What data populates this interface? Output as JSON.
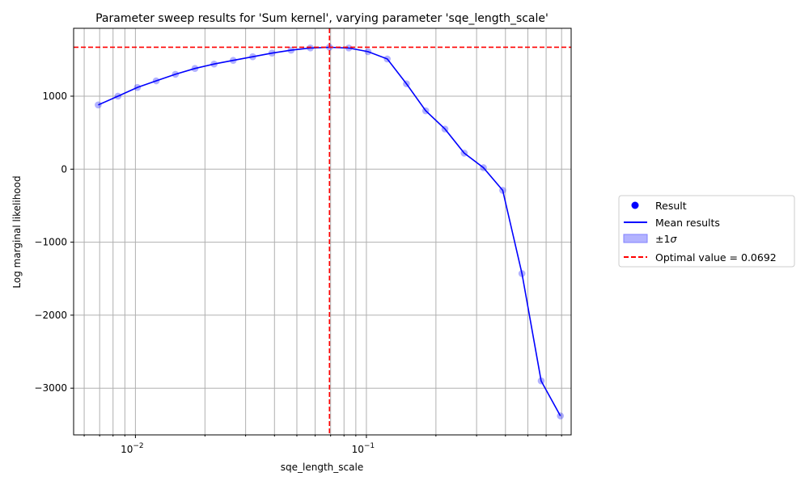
{
  "chart_data": {
    "type": "line",
    "title": "Parameter sweep results for 'Sum kernel', varying parameter 'sqe_length_scale'",
    "xlabel": "sqe_length_scale",
    "ylabel": "Log marginal likelihood",
    "xscale": "log",
    "xlim": [
      0.0054,
      0.77
    ],
    "ylim": [
      -3640,
      1930
    ],
    "y_ticks": [
      1000,
      0,
      -1000,
      -2000,
      -3000
    ],
    "y_tick_labels": [
      "1000",
      "0",
      "−1000",
      "−2000",
      "−3000"
    ],
    "x_major_ticks": [
      0.01,
      0.1
    ],
    "x_major_tick_labels": [
      "10",
      "10"
    ],
    "x_major_tick_exponents": [
      "−2",
      "−1"
    ],
    "x_minor_ticks": [
      0.006,
      0.007,
      0.008,
      0.009,
      0.02,
      0.03,
      0.04,
      0.05,
      0.06,
      0.07,
      0.08,
      0.09,
      0.2,
      0.3,
      0.4,
      0.5,
      0.6,
      0.7
    ],
    "grid": true,
    "legend_position": "right",
    "series": [
      {
        "name": "Result",
        "kind": "scatter",
        "color": "#0000ff",
        "x": [
          0.0069,
          0.0084,
          0.0102,
          0.0123,
          0.0149,
          0.0181,
          0.0219,
          0.0265,
          0.0322,
          0.039,
          0.0472,
          0.0572,
          0.0692,
          0.0839,
          0.1016,
          0.1231,
          0.1491,
          0.1806,
          0.2188,
          0.2651,
          0.3212,
          0.3891,
          0.4714,
          0.5711,
          0.6919
        ],
        "y": [
          880,
          1000,
          1120,
          1210,
          1300,
          1380,
          1440,
          1490,
          1540,
          1590,
          1630,
          1660,
          1670,
          1660,
          1610,
          1510,
          1170,
          800,
          550,
          220,
          20,
          -290,
          -1430,
          -2900,
          -3380
        ]
      },
      {
        "name": "Mean results",
        "kind": "line",
        "color": "#0000ff",
        "x": [
          0.0069,
          0.0084,
          0.0102,
          0.0123,
          0.0149,
          0.0181,
          0.0219,
          0.0265,
          0.0322,
          0.039,
          0.0472,
          0.0572,
          0.0692,
          0.0839,
          0.1016,
          0.1231,
          0.1491,
          0.1806,
          0.2188,
          0.2651,
          0.3212,
          0.3891,
          0.4714,
          0.5711,
          0.6919
        ],
        "y": [
          880,
          1000,
          1120,
          1210,
          1300,
          1380,
          1440,
          1490,
          1540,
          1590,
          1630,
          1660,
          1670,
          1660,
          1610,
          1510,
          1170,
          800,
          550,
          220,
          20,
          -290,
          -1430,
          -2900,
          -3380
        ]
      },
      {
        "name": "±1",
        "name_symbol": "σ",
        "kind": "band",
        "color": "#b3b3ff"
      },
      {
        "name": "Optimal value = 0.0692",
        "kind": "reference",
        "color": "#ff0000",
        "x_value": 0.0692,
        "y_value": 1670
      }
    ]
  }
}
